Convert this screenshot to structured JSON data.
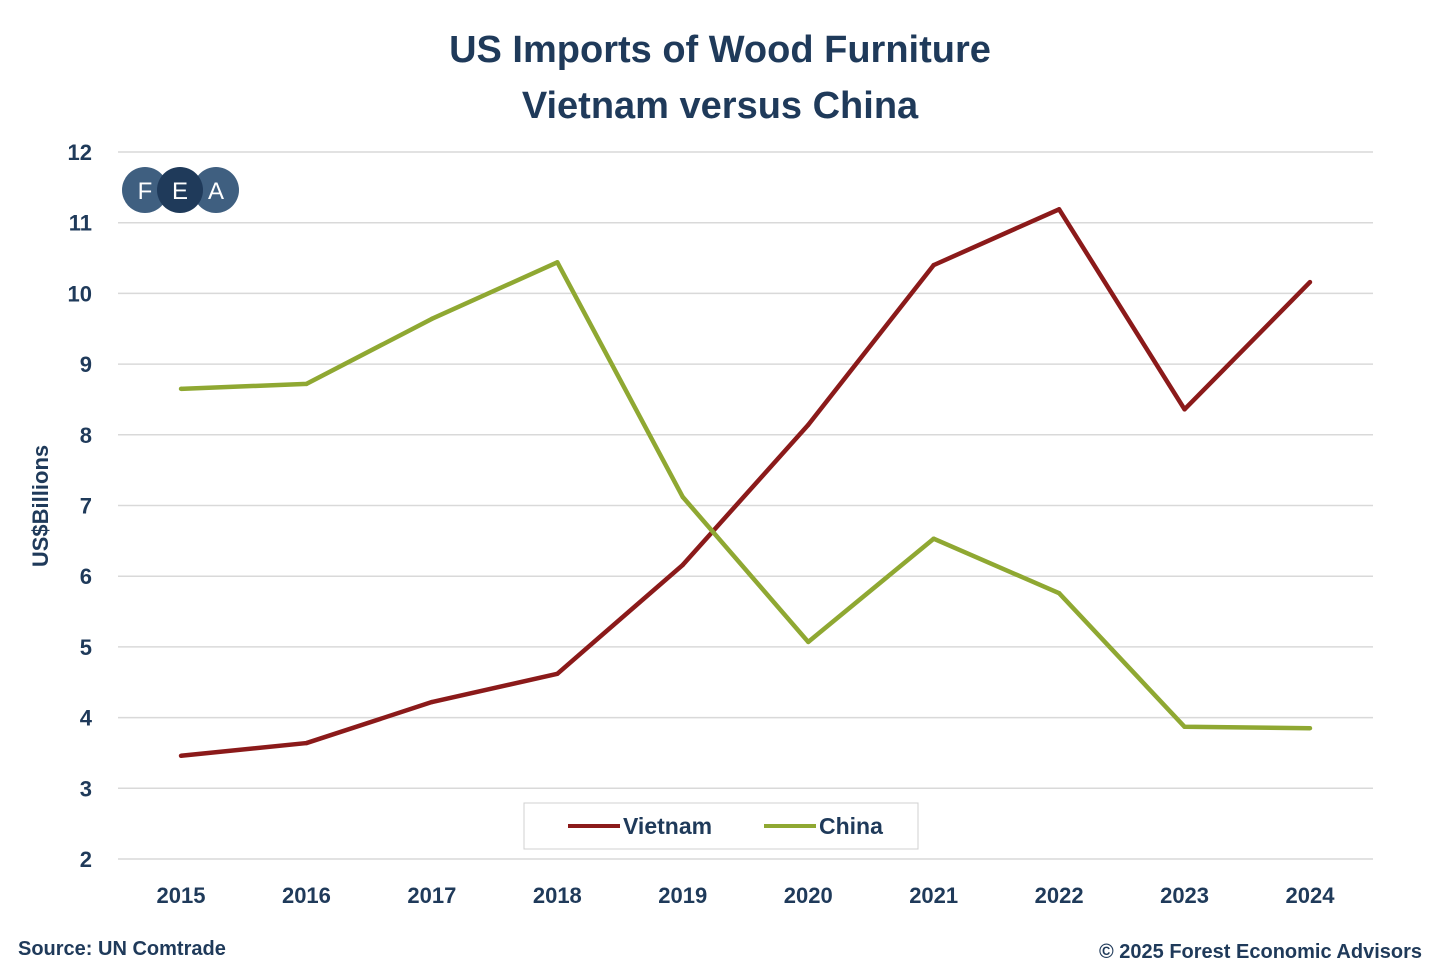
{
  "chart_data": {
    "type": "line",
    "title": "US Imports of Wood Furniture",
    "subtitle": "Vietnam versus China",
    "xlabel": "",
    "ylabel": "US$Billions",
    "ylim": [
      2,
      12
    ],
    "yticks": [
      2,
      3,
      4,
      5,
      6,
      7,
      8,
      9,
      10,
      11,
      12
    ],
    "grid": true,
    "legend_placement": "bottom-center",
    "categories": [
      "2015",
      "2016",
      "2017",
      "2018",
      "2019",
      "2020",
      "2021",
      "2022",
      "2023",
      "2024"
    ],
    "series": [
      {
        "name": "Vietnam",
        "color": "#8b1a1a",
        "values": [
          3.46,
          3.64,
          4.22,
          4.62,
          6.16,
          8.14,
          10.4,
          11.19,
          8.36,
          10.16
        ]
      },
      {
        "name": "China",
        "color": "#8fa832",
        "values": [
          8.65,
          8.72,
          9.64,
          10.44,
          7.12,
          5.07,
          6.53,
          5.76,
          3.87,
          3.85
        ]
      }
    ]
  },
  "logo": {
    "letters": [
      "F",
      "E",
      "A"
    ]
  },
  "source": "Source: UN Comtrade",
  "copyright": "© 2025 Forest Economic Advisors"
}
